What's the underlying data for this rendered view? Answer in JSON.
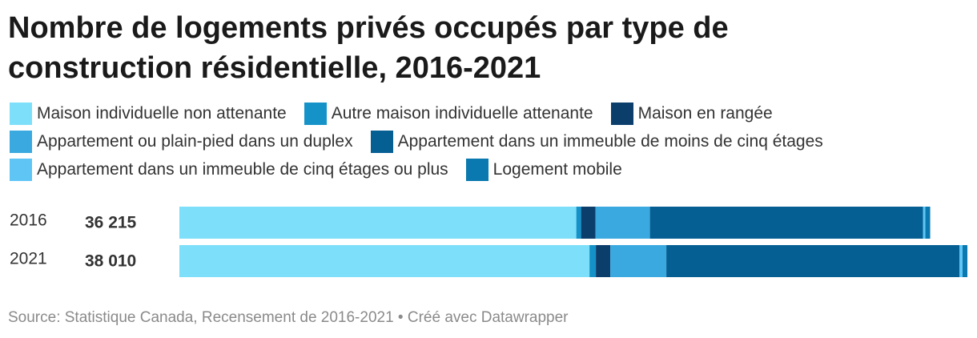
{
  "chart_data": {
    "type": "stacked-bar-horizontal",
    "title": "Nombre de logements privés occupés par type de construction résidentielle, 2016-2021",
    "categories": [
      "2016",
      "2021"
    ],
    "totals": {
      "values": [
        36215,
        38010
      ],
      "value_labels": [
        "36 215",
        "38 010"
      ]
    },
    "series": [
      {
        "name": "Maison individuelle non attenante",
        "color": "#7ddff9",
        "values": [
          19145,
          19782
        ]
      },
      {
        "name": "Autre maison individuelle attenante",
        "color": "#1593c9",
        "values": [
          232,
          309
        ]
      },
      {
        "name": "Maison en rangée",
        "color": "#0b3e6b",
        "values": [
          695,
          695
        ]
      },
      {
        "name": "Appartement ou plain-pied dans un duplex",
        "color": "#3aa9e0",
        "values": [
          2626,
          2703
        ]
      },
      {
        "name": "Appartement dans un immeuble de moins de cinq étages",
        "color": "#065f93",
        "values": [
          13169,
          14135
        ]
      },
      {
        "name": "Appartement dans un immeuble de cinq étages ou plus",
        "color": "#5fc5f5",
        "values": [
          116,
          154
        ]
      },
      {
        "name": "Logement mobile",
        "color": "#0a79af",
        "values": [
          232,
          232
        ]
      }
    ],
    "source": "Source: Statistique Canada, Recensement de 2016-2021 • Créé avec Datawrapper"
  }
}
